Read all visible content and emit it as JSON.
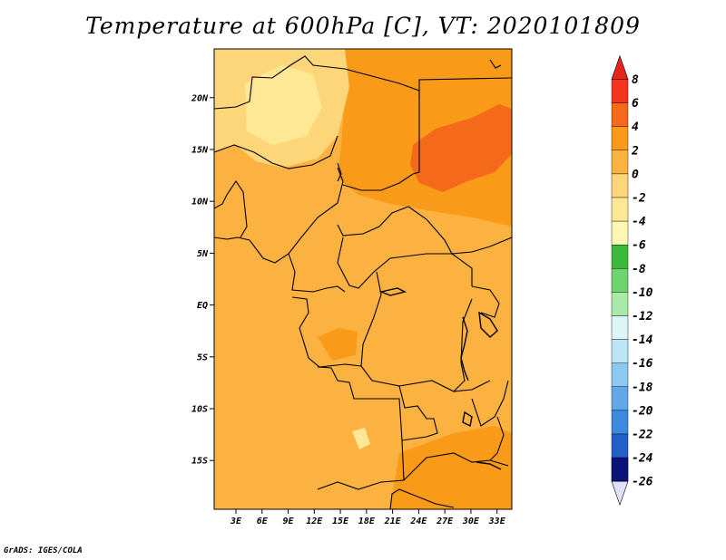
{
  "title": "Temperature at 600hPa [C], VT: 2020101809",
  "credit": "GrADS: IGES/COLA",
  "map": {
    "lat_ticks": [
      {
        "label": "20N",
        "lat": 20
      },
      {
        "label": "15N",
        "lat": 15
      },
      {
        "label": "10N",
        "lat": 10
      },
      {
        "label": "5N",
        "lat": 5
      },
      {
        "label": "EQ",
        "lat": 0
      },
      {
        "label": "5S",
        "lat": -5
      },
      {
        "label": "10S",
        "lat": -10
      },
      {
        "label": "15S",
        "lat": -15
      }
    ],
    "lon_ticks": [
      {
        "label": "3E",
        "lon": 3
      },
      {
        "label": "6E",
        "lon": 6
      },
      {
        "label": "9E",
        "lon": 9
      },
      {
        "label": "12E",
        "lon": 12
      },
      {
        "label": "15E",
        "lon": 15
      },
      {
        "label": "18E",
        "lon": 18
      },
      {
        "label": "21E",
        "lon": 21
      },
      {
        "label": "24E",
        "lon": 24
      },
      {
        "label": "27E",
        "lon": 27
      },
      {
        "label": "30E",
        "lon": 30
      },
      {
        "label": "33E",
        "lon": 33
      }
    ],
    "lon_range": [
      0.5,
      34.7
    ],
    "lat_range": [
      -19.7,
      24.7
    ],
    "colors": {
      "background": "#fcb240",
      "warm": "#f99a18",
      "hot": "#f46a1a",
      "cool": "#fed67a",
      "coolest": "#fee896",
      "border": "#000000"
    }
  },
  "colorbar": {
    "levels": [
      "8",
      "6",
      "4",
      "2",
      "0",
      "-2",
      "-4",
      "-6",
      "-8",
      "-10",
      "-12",
      "-14",
      "-16",
      "-18",
      "-20",
      "-22",
      "-24",
      "-26"
    ],
    "colors": [
      "#f4341c",
      "#f46a1a",
      "#f99a18",
      "#fcb240",
      "#fed67a",
      "#fee896",
      "#fff6b4",
      "#3cba3c",
      "#6ed46e",
      "#a8eaa8",
      "#dcf6f6",
      "#bce6f6",
      "#8cc8f0",
      "#62a8e8",
      "#3c8ae0",
      "#2260c8",
      "#1440a8",
      "#0a1478"
    ],
    "top_arrow_color": "#e8241c",
    "bottom_arrow_color": "#e0e0f8"
  }
}
